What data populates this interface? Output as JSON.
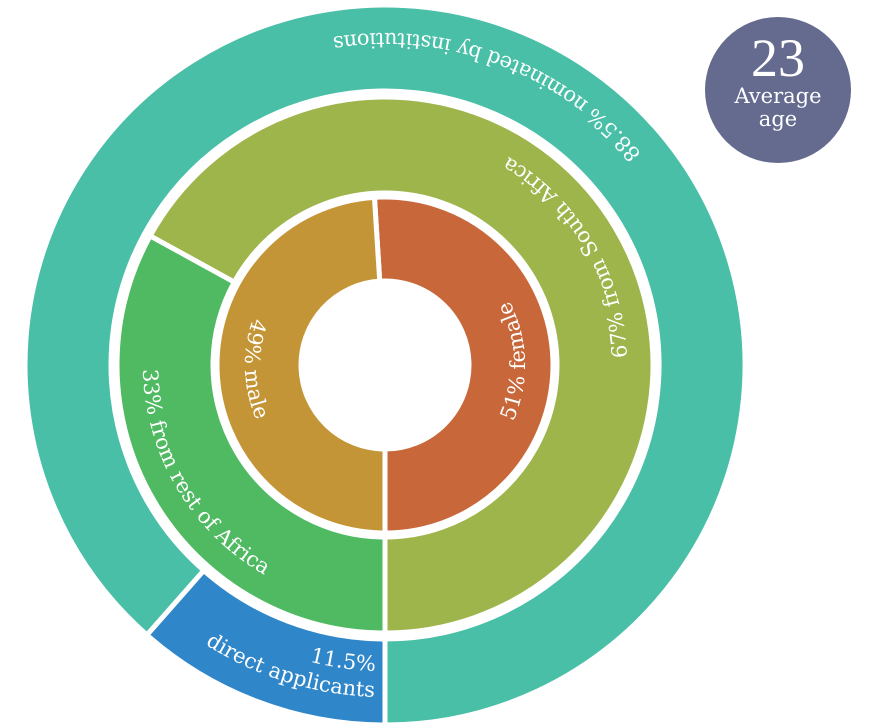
{
  "chart_data": [
    {
      "type": "donut",
      "categories": [
        "female",
        "male"
      ],
      "values": [
        51,
        49
      ],
      "value_labels": [
        "51%",
        "49%"
      ],
      "colors": [
        "#c8683a",
        "#c49536"
      ]
    },
    {
      "type": "donut",
      "categories": [
        "from South Africa",
        "from rest of Africa"
      ],
      "values": [
        67,
        33
      ],
      "value_labels": [
        "67%",
        "33%"
      ],
      "colors": [
        "#9db54b",
        "#4fba62"
      ]
    },
    {
      "type": "donut",
      "categories": [
        "nominated by institutions",
        "direct applicants"
      ],
      "values": [
        88.5,
        11.5
      ],
      "value_labels": [
        "88.5%",
        "11.5%"
      ],
      "colors": [
        "#48bfa6",
        "#2f86c9"
      ]
    }
  ],
  "badge": {
    "value": 23,
    "label": "Average age"
  }
}
